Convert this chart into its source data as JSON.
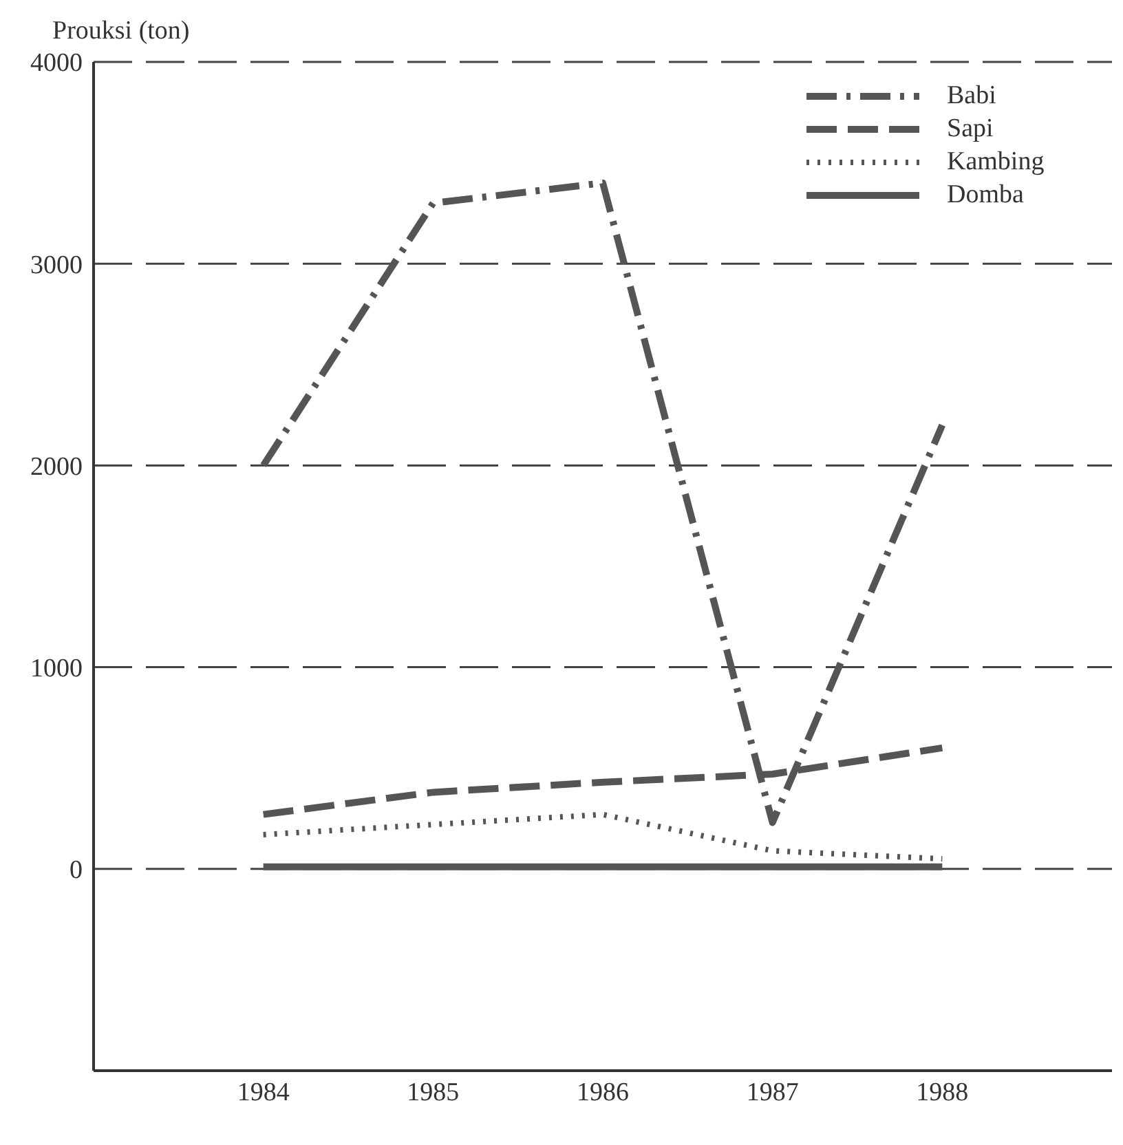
{
  "chart_data": {
    "type": "line",
    "ylabel": "Prouksi (ton)",
    "x": [
      1984,
      1985,
      1986,
      1987,
      1988
    ],
    "xlim": [
      1983,
      1989
    ],
    "xticks": [
      1984,
      1985,
      1986,
      1987,
      1988
    ],
    "ylim": [
      -1000,
      4000
    ],
    "yticks": [
      0,
      1000,
      2000,
      3000,
      4000
    ],
    "grid": "y",
    "legend": "top right",
    "marker": "none",
    "series": [
      {
        "name": "Babi",
        "color": "#555555",
        "line_style": "dashdot",
        "values": [
          2000,
          3300,
          3400,
          230,
          2200
        ]
      },
      {
        "name": "Sapi",
        "color": "#555555",
        "line_style": "dashed",
        "values": [
          270,
          380,
          430,
          470,
          600
        ]
      },
      {
        "name": "Kambing",
        "color": "#555555",
        "line_style": "dotted",
        "values": [
          170,
          220,
          270,
          90,
          50
        ]
      },
      {
        "name": "Domba",
        "color": "#555555",
        "line_style": "solid",
        "values": [
          10,
          10,
          10,
          10,
          10
        ]
      }
    ]
  }
}
